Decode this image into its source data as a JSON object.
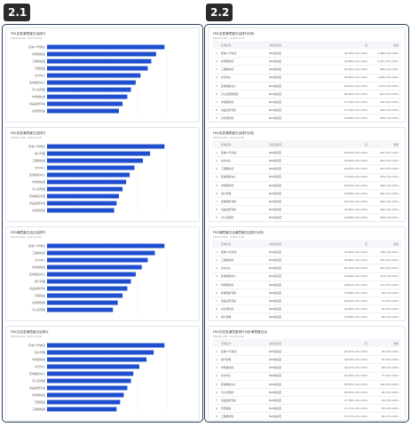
{
  "labels": {
    "left": "2.1",
    "right": "2.2"
  },
  "colors": {
    "bar": "#1f4fce",
    "badge": "#2a2a2a",
    "panel_border": "#2b3d5c"
  },
  "left_cards": [
    {
      "title": "FB1实发满意度日活排行",
      "subtitle": "2023/11/08 - 2023/11/08",
      "chart_data": {
        "type": "bar",
        "orientation": "horizontal",
        "categories": [
          "区域17号重点",
          "市场质检组",
          "工程质检组",
          "天团组品",
          "交付中心",
          "区域组织中心",
          "可以实现组",
          "市场质检组",
          "商品适质专案",
          "交易质控组"
        ],
        "values": [
          98,
          91,
          87,
          84,
          78,
          74,
          70,
          67,
          63,
          60
        ],
        "xlim": [
          0,
          100
        ]
      }
    },
    {
      "title": "FB2实发满意度日活排行",
      "subtitle": "2023/11/08 - 2023/11/08",
      "chart_data": {
        "type": "bar",
        "orientation": "horizontal",
        "categories": [
          "区域17号重点",
          "用户管理",
          "工程质检组",
          "交付中心",
          "区域组织中心",
          "市场质检组",
          "可以实现组",
          "区域组织专组",
          "商品适质专案",
          "交易质控组"
        ],
        "values": [
          98,
          86,
          80,
          73,
          69,
          66,
          63,
          60,
          58,
          56
        ],
        "xlim": [
          0,
          100
        ]
      }
    },
    {
      "title": "FB3满意度日活日活排行",
      "subtitle": "2023/11/08 - 2023/11/08",
      "chart_data": {
        "type": "bar",
        "orientation": "horizontal",
        "categories": [
          "区域17号重点",
          "工程质检组",
          "交付中心",
          "市场质检组",
          "区域组织中心",
          "用户管理",
          "商品适质专案",
          "天团组品",
          "交易质控组",
          "可以实现组"
        ],
        "values": [
          98,
          90,
          84,
          79,
          74,
          70,
          67,
          63,
          59,
          55
        ],
        "xlim": [
          0,
          100
        ]
      }
    },
    {
      "title": "FB4方实发满意度日活排行",
      "subtitle": "2023/11/08 - 2023/11/08",
      "chart_data": {
        "type": "bar",
        "orientation": "horizontal",
        "categories": [
          "区域17号重点",
          "用户管理",
          "市场质检组",
          "交付中心",
          "区域组织中心",
          "可以实现组",
          "商品适质专案",
          "市场质检组",
          "天团组品",
          "工程质检组"
        ],
        "values": [
          98,
          89,
          83,
          77,
          72,
          70,
          67,
          64,
          61,
          58
        ],
        "xlim": [
          0,
          100
        ]
      }
    }
  ],
  "table_header": {
    "rank": "",
    "name": "区域名称",
    "type": "满意度类型",
    "pct": "值",
    "cnt": "数量"
  },
  "right_cards": [
    {
      "title": "FB1实发满意度日活排行分析",
      "subtitle": "2023/11/08 - 2023/11/08",
      "rows": [
        {
          "rank": "1",
          "name": "区域17号重点",
          "type": "NPS满意度",
          "pct": "34.78% (1%) 0.0%",
          "cnt": "1,489 (1%) 0.0%"
        },
        {
          "rank": "2",
          "name": "市场质检组",
          "type": "NPS满意度",
          "pct": "31.66% (1%) 0.0%",
          "cnt": "1,327 (1%) 0.0%"
        },
        {
          "rank": "3",
          "name": "工程质检组",
          "type": "NPS满意度",
          "pct": "21.34% (1%) 0.0%",
          "cnt": "890 (1%) 0.0%"
        },
        {
          "rank": "4",
          "name": "交付中心",
          "type": "NPS满意度",
          "pct": "20.96% (1%) 0.0%",
          "cnt": "1,004 (1%) 0.0%"
        },
        {
          "rank": "5",
          "name": "区域组织中心",
          "type": "NPS满意度",
          "pct": "19.51% (1%) 0.0%",
          "cnt": "1,073 (1%) 0.0%"
        },
        {
          "rank": "6",
          "name": "可以实现组组织",
          "type": "NPS满意度",
          "pct": "18.19% (1%) 0.0%",
          "cnt": "813 (1%) 0.0%"
        },
        {
          "rank": "7",
          "name": "市场质检组",
          "type": "NPS满意度",
          "pct": "17.19% (1%) 0.0%",
          "cnt": "752 (1%) 0.0%"
        },
        {
          "rank": "8",
          "name": "商品适质专案",
          "type": "NPS满意度",
          "pct": "17.10% (1%) 0.0%",
          "cnt": "620 (1%) 0.0%"
        },
        {
          "rank": "9",
          "name": "交易质控组",
          "type": "NPS满意度",
          "pct": "16.58% (1%) 0.0%",
          "cnt": "678 (1%) 0.0%"
        }
      ]
    },
    {
      "title": "FB2实发满意度日活排行分析",
      "subtitle": "2023/11/08 - 2023/11/08",
      "rows": [
        {
          "rank": "1",
          "name": "区域17号重点",
          "type": "NPS满意度",
          "pct": "23.03% (1%) 0.0%",
          "cnt": "237 (1%) 0.0%"
        },
        {
          "rank": "2",
          "name": "交付中心",
          "type": "NPS满意度",
          "pct": "19.19% (1%) 0.0%",
          "cnt": "310 (1%) 0.0%"
        },
        {
          "rank": "3",
          "name": "工程质检组",
          "type": "NPS满意度",
          "pct": "18.93% (1%) 0.0%",
          "cnt": "212 (1%) 0.0%"
        },
        {
          "rank": "4",
          "name": "区域组织中心",
          "type": "NPS满意度",
          "pct": "17.25% (1%) 0.0%",
          "cnt": "276 (1%) 0.0%"
        },
        {
          "rank": "5",
          "name": "市场质检组",
          "type": "NPS满意度",
          "pct": "16.97% (1%) 0.0%",
          "cnt": "189 (1%) 0.0%"
        },
        {
          "rank": "6",
          "name": "用户管理",
          "type": "NPS满意度",
          "pct": "16.89% (1%) 0.0%",
          "cnt": "201 (1%) 0.0%"
        },
        {
          "rank": "7",
          "name": "区域组织专组",
          "type": "NPS满意度",
          "pct": "16.73% (1%) 0.0%",
          "cnt": "246 (1%) 0.0%"
        },
        {
          "rank": "8",
          "name": "商品适质专案",
          "type": "NPS满意度",
          "pct": "16.49% (1%) 0.0%",
          "cnt": "164 (1%) 0.0%"
        },
        {
          "rank": "9",
          "name": "可以实现组",
          "type": "NPS满意度",
          "pct": "16.08% (1%) 0.0%",
          "cnt": "228 (1%) 0.0%"
        }
      ]
    },
    {
      "title": "FB3满意度日活满意度日活排行分析",
      "subtitle": "2023/11/08 - 2023/11/08",
      "rows": [
        {
          "rank": "1",
          "name": "区域17号重点",
          "type": "NPS满意度",
          "pct": "23.34% (1%) 0.0%",
          "cnt": "199 (1%) 0.0%"
        },
        {
          "rank": "2",
          "name": "工程质检组",
          "type": "NPS满意度",
          "pct": "21.89% (1%) 0.0%",
          "cnt": "155 (1%) 0.0%"
        },
        {
          "rank": "3",
          "name": "交付中心",
          "type": "NPS满意度",
          "pct": "20.19% (1%) 0.0%",
          "cnt": "163 (1%) 0.0%"
        },
        {
          "rank": "4",
          "name": "区域组织中心",
          "type": "NPS满意度",
          "pct": "19.66% (1%) 0.0%",
          "cnt": "118 (1%) 0.0%"
        },
        {
          "rank": "5",
          "name": "市场质检组",
          "type": "NPS满意度",
          "pct": "18.81% (1%) 0.0%",
          "cnt": "177 (1%) 0.0%"
        },
        {
          "rank": "6",
          "name": "区域组织专组",
          "type": "NPS满意度",
          "pct": "17.88% (1%) 0.0%",
          "cnt": "89 (1%) 0.0%"
        },
        {
          "rank": "7",
          "name": "商品适质专案",
          "type": "NPS满意度",
          "pct": "16.83% (1%) 0.0%",
          "cnt": "73 (1%) 0.0%"
        },
        {
          "rank": "8",
          "name": "交易质控组",
          "type": "NPS满意度",
          "pct": "15.49% (1%) 0.0%",
          "cnt": "92 (1%) 0.0%"
        },
        {
          "rank": "9",
          "name": "用户管理",
          "type": "NPS满意度",
          "pct": "13.86% (1%) 0.0%",
          "cnt": "86 (1%) 0.0%"
        }
      ]
    },
    {
      "title": "FB4方实发满意度排行分析满意度日活",
      "subtitle": "2023/11/08 - 2023/11/08",
      "rows": [
        {
          "rank": "1",
          "name": "区域17号重点",
          "type": "NPS满意度",
          "pct": "23.47% (1%) 0.0%",
          "cnt": "94 (1%) 0.0%"
        },
        {
          "rank": "2",
          "name": "用户管理",
          "type": "NPS满意度",
          "pct": "20.53% (1%) 0.0%",
          "cnt": "97 (1%) 0.0%"
        },
        {
          "rank": "3",
          "name": "市场质检组",
          "type": "NPS满意度",
          "pct": "20.17% (1%) 0.0%",
          "cnt": "88 (1%) 0.0%"
        },
        {
          "rank": "4",
          "name": "交付中心",
          "type": "NPS满意度",
          "pct": "19.19% (1%) 0.0%",
          "cnt": "77 (1%) 0.0%"
        },
        {
          "rank": "5",
          "name": "区域组织中心",
          "type": "NPS满意度",
          "pct": "18.95% (1%) 0.0%",
          "cnt": "101 (1%) 0.0%"
        },
        {
          "rank": "6",
          "name": "可以实现组",
          "type": "NPS满意度",
          "pct": "18.33% (1%) 0.0%",
          "cnt": "82 (1%) 0.0%"
        },
        {
          "rank": "7",
          "name": "商品适质专案",
          "type": "NPS满意度",
          "pct": "17.78% (1%) 0.0%",
          "cnt": "69 (1%) 0.0%"
        },
        {
          "rank": "8",
          "name": "天团组品",
          "type": "NPS满意度",
          "pct": "17.71% (1%) 0.0%",
          "cnt": "56 (1%) 0.0%"
        },
        {
          "rank": "9",
          "name": "工程质检组",
          "type": "NPS满意度",
          "pct": "17.67% (1%) 0.0%",
          "cnt": "64 (1%) 0.0%"
        }
      ]
    }
  ]
}
